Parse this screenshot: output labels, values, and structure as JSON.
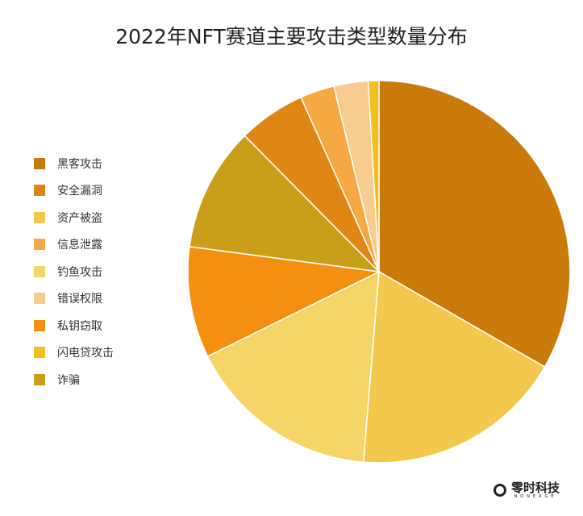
{
  "chart_data": {
    "type": "pie",
    "title": "2022年NFT赛道主要攻击类型数量分布",
    "legend_position": "left",
    "legend": [
      "黑客攻击",
      "安全漏洞",
      "资产被盗",
      "信息泄露",
      "钓鱼攻击",
      "错误权限",
      "私钥窃取",
      "闪电贷攻击",
      "诈骗"
    ],
    "slices": [
      {
        "label": "黑客攻击",
        "value": 33.3,
        "color": "#C97A0B"
      },
      {
        "label": "资产被盗",
        "value": 18.0,
        "color": "#F2C94C"
      },
      {
        "label": "钓鱼攻击",
        "value": 16.4,
        "color": "#F5D468"
      },
      {
        "label": "私钥窃取",
        "value": 9.4,
        "color": "#F4900F"
      },
      {
        "label": "诈骗",
        "value": 10.5,
        "color": "#C99F1A"
      },
      {
        "label": "安全漏洞",
        "value": 5.7,
        "color": "#E08614"
      },
      {
        "label": "信息泄露",
        "value": 2.9,
        "color": "#F6A843"
      },
      {
        "label": "错误权限",
        "value": 2.9,
        "color": "#F8CB8E"
      },
      {
        "label": "闪电贷攻击",
        "value": 0.9,
        "color": "#F4BF1E"
      }
    ]
  },
  "logo": {
    "name": "零时科技",
    "sub": "NONEAGE"
  }
}
